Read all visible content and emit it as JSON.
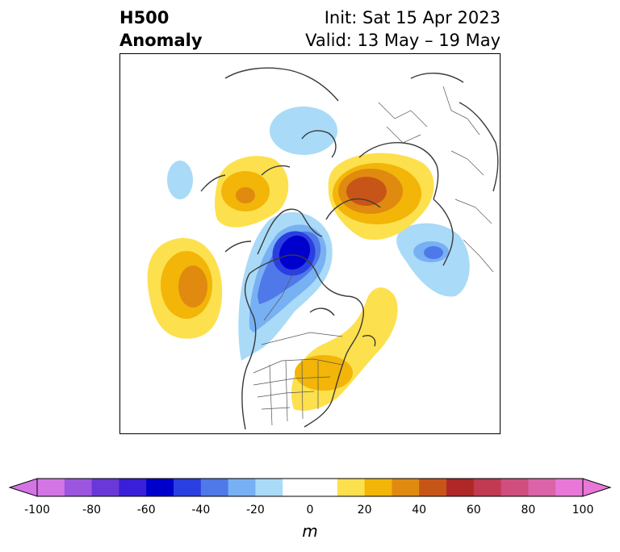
{
  "title": {
    "line1": "H500",
    "line2": "Anomaly"
  },
  "init": {
    "line1": "Init: Sat 15 Apr 2023",
    "line2": "Valid: 13 May – 19 May"
  },
  "colorbar": {
    "unit": "m",
    "tick_labels": [
      "-100",
      "-80",
      "-60",
      "-40",
      "-20",
      "0",
      "20",
      "40",
      "60",
      "80",
      "100"
    ],
    "tick_values": [
      -100,
      -80,
      -60,
      -40,
      -20,
      0,
      20,
      40,
      60,
      80,
      100
    ],
    "range": [
      -100,
      100
    ],
    "bins": [
      {
        "from": -100,
        "to": -90,
        "color": "#d475e6"
      },
      {
        "from": -90,
        "to": -80,
        "color": "#9c55df"
      },
      {
        "from": -80,
        "to": -70,
        "color": "#6b38d8"
      },
      {
        "from": -70,
        "to": -60,
        "color": "#3a1fd8"
      },
      {
        "from": -60,
        "to": -50,
        "color": "#0000cc"
      },
      {
        "from": -50,
        "to": -40,
        "color": "#2a3fe0"
      },
      {
        "from": -40,
        "to": -30,
        "color": "#4f78e8"
      },
      {
        "from": -30,
        "to": -20,
        "color": "#78b0f4"
      },
      {
        "from": -20,
        "to": -10,
        "color": "#a9daf8"
      },
      {
        "from": -10,
        "to": 10,
        "color": "#ffffff"
      },
      {
        "from": 10,
        "to": 20,
        "color": "#fde04d"
      },
      {
        "from": 20,
        "to": 30,
        "color": "#f2b508"
      },
      {
        "from": 30,
        "to": 40,
        "color": "#e08a10"
      },
      {
        "from": 40,
        "to": 50,
        "color": "#c85518"
      },
      {
        "from": 50,
        "to": 60,
        "color": "#b02727"
      },
      {
        "from": 60,
        "to": 70,
        "color": "#c03a52"
      },
      {
        "from": 70,
        "to": 80,
        "color": "#cf4e7e"
      },
      {
        "from": 80,
        "to": 90,
        "color": "#db64a8"
      },
      {
        "from": 90,
        "to": 100,
        "color": "#e877d8"
      }
    ],
    "extend_min_color": "#d475e6",
    "extend_max_color": "#e877d8"
  }
}
